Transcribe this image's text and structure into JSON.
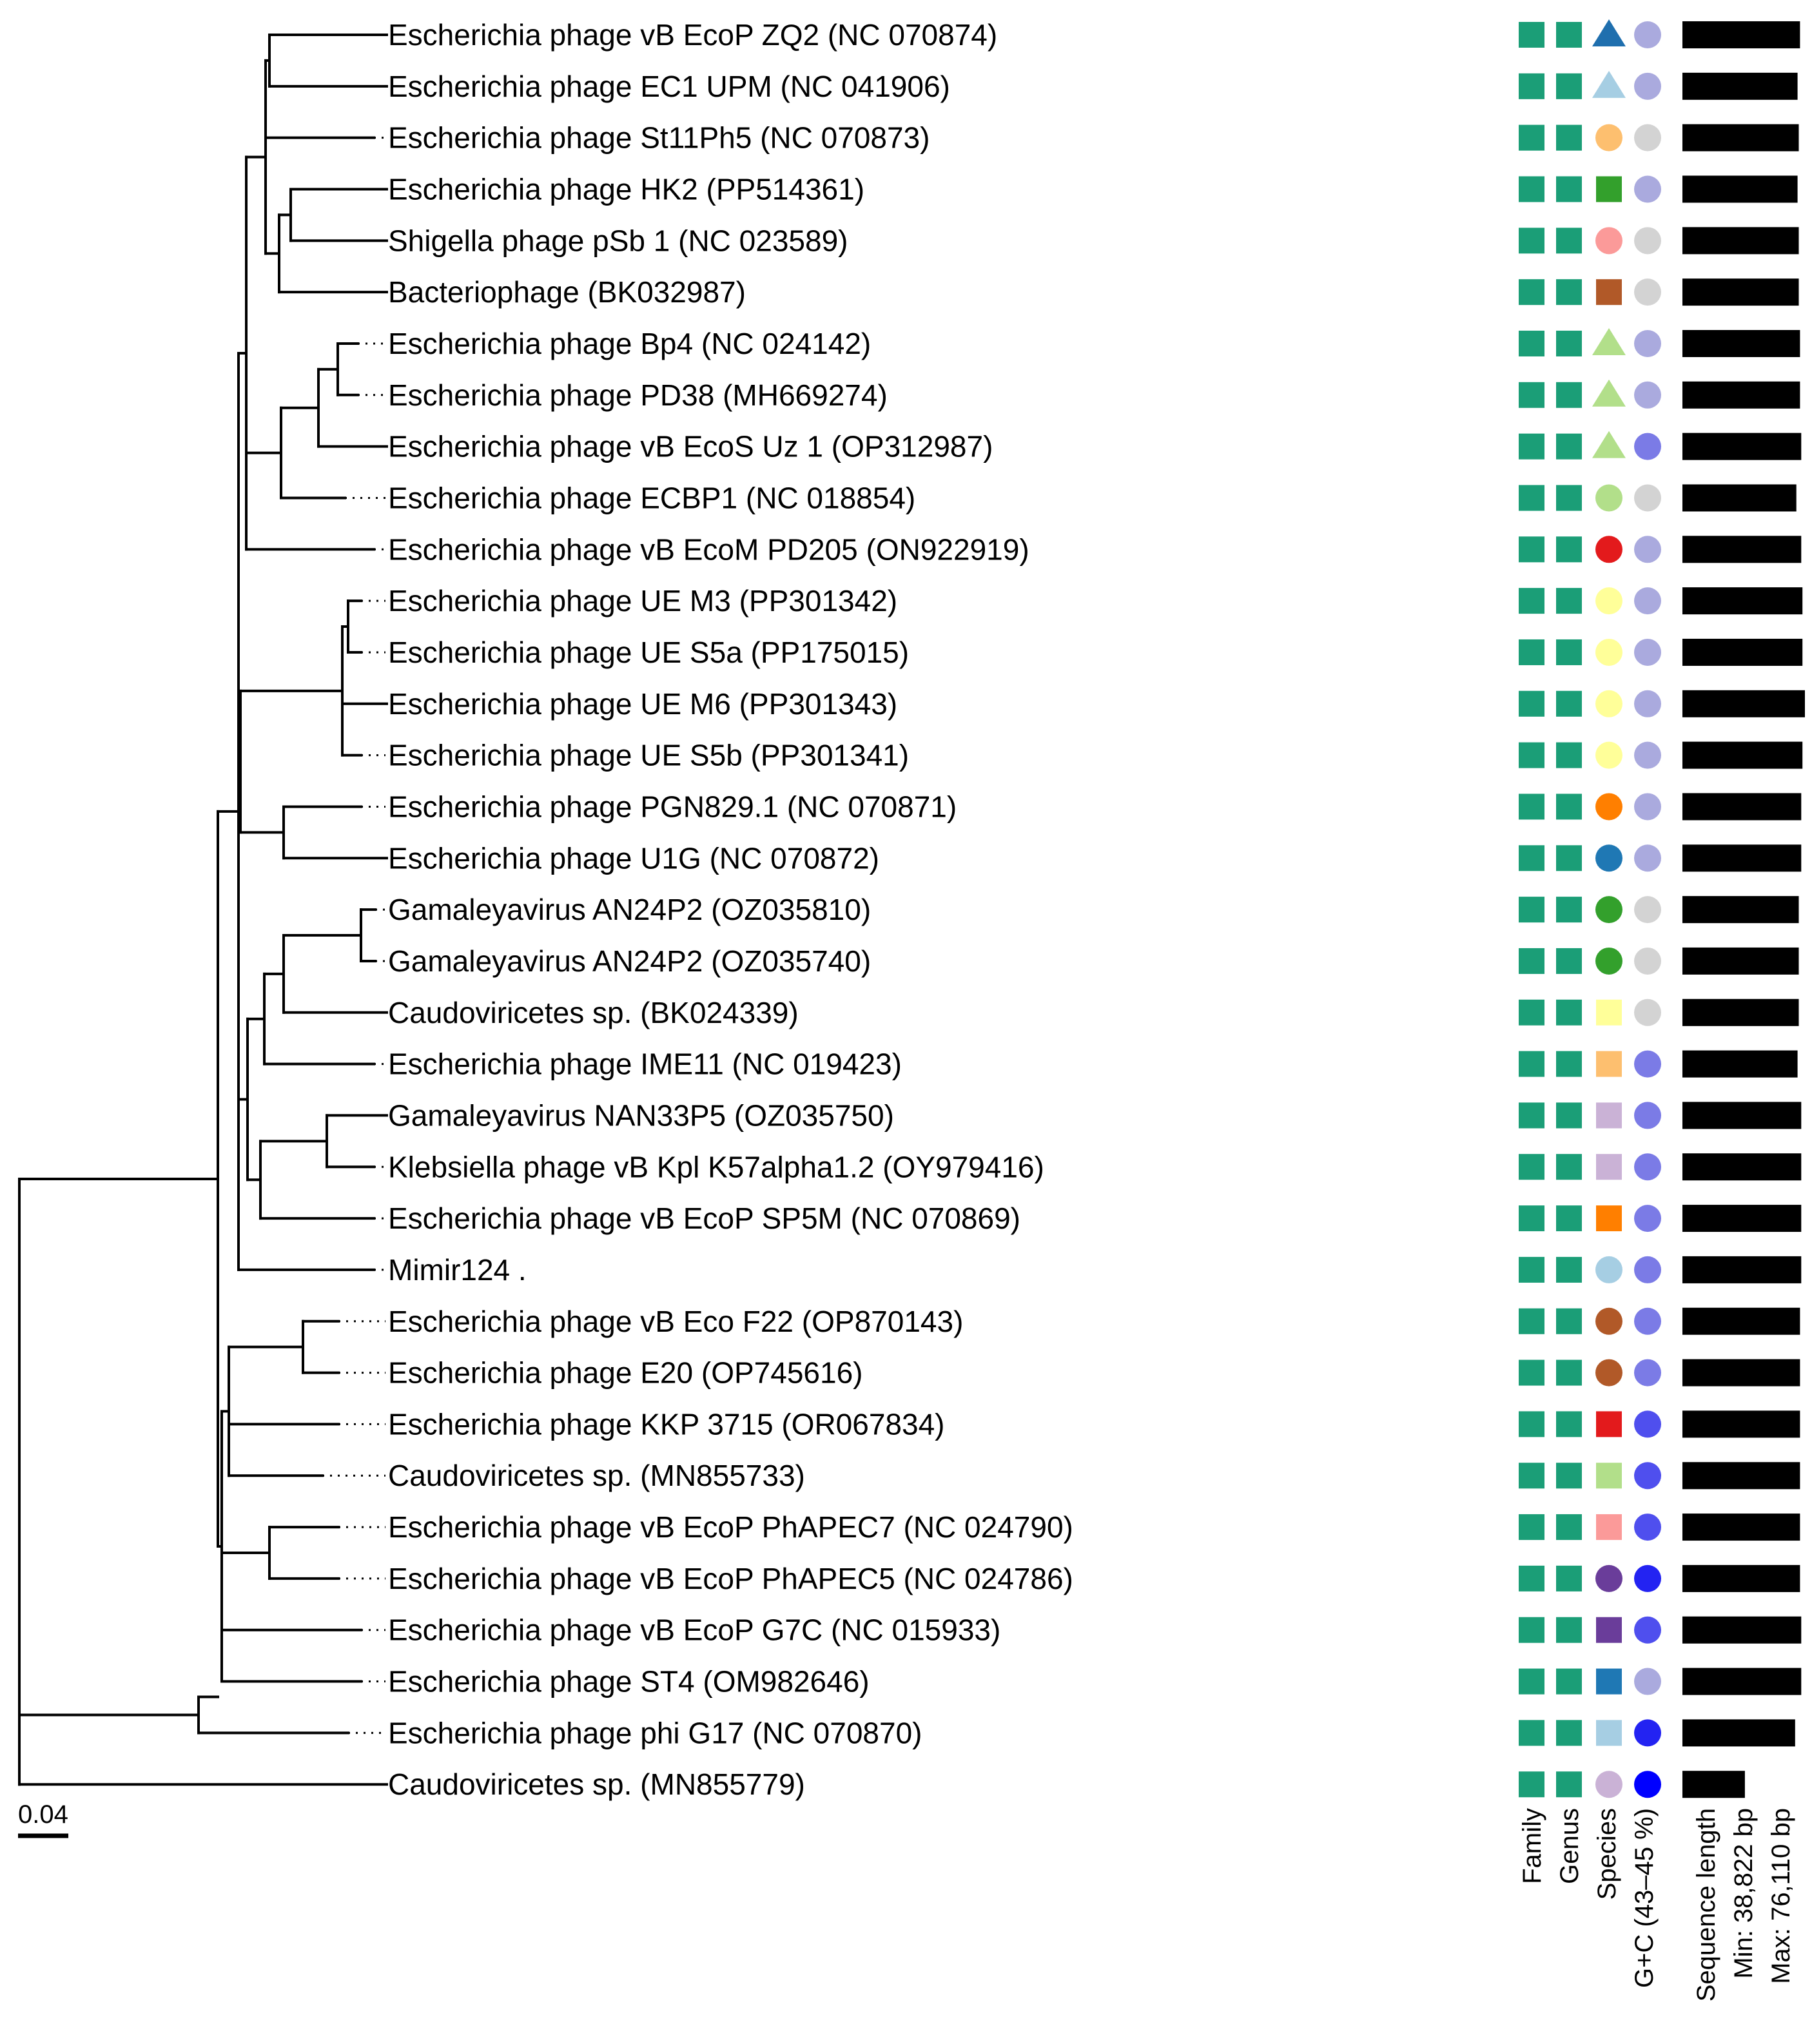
{
  "scale_bar": "0.04",
  "taxa": [
    {
      "label": "Escherichia phage vB EcoP ZQ2 (NC 070874)",
      "species": {
        "shape": "triangle",
        "color": "#1f6fae"
      },
      "gc": "#aaaade",
      "len": 0.96
    },
    {
      "label": "Escherichia phage EC1 UPM (NC 041906)",
      "species": {
        "shape": "triangle",
        "color": "#a6cee3"
      },
      "gc": "#aaaade",
      "len": 0.94
    },
    {
      "label": "Escherichia phage St11Ph5 (NC 070873)",
      "species": {
        "shape": "circle",
        "color": "#fdbf6f"
      },
      "gc": "#d3d3d3",
      "len": 0.95
    },
    {
      "label": "Escherichia phage HK2 (PP514361)",
      "species": {
        "shape": "square",
        "color": "#33a02c"
      },
      "gc": "#aaaade",
      "len": 0.94
    },
    {
      "label": "Shigella phage pSb 1 (NC 023589)",
      "species": {
        "shape": "circle",
        "color": "#fb9a99"
      },
      "gc": "#d3d3d3",
      "len": 0.95
    },
    {
      "label": "Bacteriophage (BK032987)",
      "species": {
        "shape": "square",
        "color": "#b15928"
      },
      "gc": "#d3d3d3",
      "len": 0.95
    },
    {
      "label": "Escherichia phage Bp4 (NC 024142)",
      "species": {
        "shape": "triangle",
        "color": "#b2df8a"
      },
      "gc": "#aaaade",
      "len": 0.96
    },
    {
      "label": "Escherichia phage PD38 (MH669274)",
      "species": {
        "shape": "triangle",
        "color": "#b2df8a"
      },
      "gc": "#aaaade",
      "len": 0.96
    },
    {
      "label": "Escherichia phage vB EcoS Uz 1 (OP312987)",
      "species": {
        "shape": "triangle",
        "color": "#b2df8a"
      },
      "gc": "#7b7be6",
      "len": 0.97
    },
    {
      "label": "Escherichia phage ECBP1 (NC 018854)",
      "species": {
        "shape": "circle",
        "color": "#b2df8a"
      },
      "gc": "#d3d3d3",
      "len": 0.93
    },
    {
      "label": "Escherichia phage vB EcoM PD205 (ON922919)",
      "species": {
        "shape": "circle",
        "color": "#e31a1c"
      },
      "gc": "#aaaade",
      "len": 0.97
    },
    {
      "label": "Escherichia phage UE M3 (PP301342)",
      "species": {
        "shape": "circle",
        "color": "#ffff99"
      },
      "gc": "#aaaade",
      "len": 0.98
    },
    {
      "label": "Escherichia phage UE S5a (PP175015)",
      "species": {
        "shape": "circle",
        "color": "#ffff99"
      },
      "gc": "#aaaade",
      "len": 0.98
    },
    {
      "label": "Escherichia phage UE M6 (PP301343)",
      "species": {
        "shape": "circle",
        "color": "#ffff99"
      },
      "gc": "#aaaade",
      "len": 1.0
    },
    {
      "label": "Escherichia phage UE S5b (PP301341)",
      "species": {
        "shape": "circle",
        "color": "#ffff99"
      },
      "gc": "#aaaade",
      "len": 0.98
    },
    {
      "label": "Escherichia phage PGN829.1 (NC 070871)",
      "species": {
        "shape": "circle",
        "color": "#ff7f00"
      },
      "gc": "#aaaade",
      "len": 0.97
    },
    {
      "label": "Escherichia phage U1G (NC 070872)",
      "species": {
        "shape": "circle",
        "color": "#1f78b4"
      },
      "gc": "#aaaade",
      "len": 0.97
    },
    {
      "label": "Gamaleyavirus AN24P2 (OZ035810)",
      "species": {
        "shape": "circle",
        "color": "#33a02c"
      },
      "gc": "#d3d3d3",
      "len": 0.95
    },
    {
      "label": "Gamaleyavirus AN24P2 (OZ035740)",
      "species": {
        "shape": "circle",
        "color": "#33a02c"
      },
      "gc": "#d3d3d3",
      "len": 0.95
    },
    {
      "label": "Caudoviricetes sp. (BK024339)",
      "species": {
        "shape": "square",
        "color": "#ffff99"
      },
      "gc": "#d3d3d3",
      "len": 0.95
    },
    {
      "label": "Escherichia phage IME11 (NC 019423)",
      "species": {
        "shape": "square",
        "color": "#fdbf6f"
      },
      "gc": "#7b7be6",
      "len": 0.94
    },
    {
      "label": "Gamaleyavirus NAN33P5 (OZ035750)",
      "species": {
        "shape": "square",
        "color": "#cab2d6"
      },
      "gc": "#7b7be6",
      "len": 0.97
    },
    {
      "label": "Klebsiella phage vB Kpl K57alpha1.2 (OY979416)",
      "species": {
        "shape": "square",
        "color": "#cab2d6"
      },
      "gc": "#7b7be6",
      "len": 0.97
    },
    {
      "label": "Escherichia phage vB EcoP SP5M (NC 070869)",
      "species": {
        "shape": "square",
        "color": "#ff7f00"
      },
      "gc": "#7b7be6",
      "len": 0.97
    },
    {
      "label": "Mimir124 .",
      "species": {
        "shape": "circle",
        "color": "#a6cee3"
      },
      "gc": "#7b7be6",
      "len": 0.97
    },
    {
      "label": "Escherichia phage vB Eco F22 (OP870143)",
      "species": {
        "shape": "circle",
        "color": "#b15928"
      },
      "gc": "#7b7be6",
      "len": 0.96
    },
    {
      "label": "Escherichia phage E20 (OP745616)",
      "species": {
        "shape": "circle",
        "color": "#b15928"
      },
      "gc": "#7b7be6",
      "len": 0.96
    },
    {
      "label": "Escherichia phage KKP 3715 (OR067834)",
      "species": {
        "shape": "square",
        "color": "#e31a1c"
      },
      "gc": "#4f4fee",
      "len": 0.96
    },
    {
      "label": "Caudoviricetes sp. (MN855733)",
      "species": {
        "shape": "square",
        "color": "#b2df8a"
      },
      "gc": "#4f4fee",
      "len": 0.96
    },
    {
      "label": "Escherichia phage vB EcoP PhAPEC7 (NC 024790)",
      "species": {
        "shape": "square",
        "color": "#fb9a99"
      },
      "gc": "#4f4fee",
      "len": 0.96
    },
    {
      "label": "Escherichia phage vB EcoP PhAPEC5 (NC 024786)",
      "species": {
        "shape": "circle",
        "color": "#6a3d9a"
      },
      "gc": "#2323f2",
      "len": 0.96
    },
    {
      "label": "Escherichia phage vB EcoP G7C (NC 015933)",
      "species": {
        "shape": "square",
        "color": "#6a3d9a"
      },
      "gc": "#4f4fee",
      "len": 0.97
    },
    {
      "label": "Escherichia phage ST4 (OM982646)",
      "species": {
        "shape": "square",
        "color": "#1f78b4"
      },
      "gc": "#aaaade",
      "len": 0.97
    },
    {
      "label": "Escherichia phage phi G17 (NC 070870)",
      "species": {
        "shape": "square",
        "color": "#a6cee3"
      },
      "gc": "#2323f2",
      "len": 0.92
    },
    {
      "label": "Caudoviricetes sp. (MN855779)",
      "species": {
        "shape": "circle",
        "color": "#cab2d6"
      },
      "gc": "#0000ff",
      "len": 0.51
    }
  ],
  "family_color": "#1b9e77",
  "genus_color": "#1b9e77",
  "bar_color": "#000000",
  "columns": {
    "family": "Family",
    "genus": "Genus",
    "species": "Species",
    "gc": "G+C (43–45 %)",
    "seq_length": "Sequence length",
    "min": "Min: 38,822 bp",
    "max": "Max: 76,110 bp"
  }
}
